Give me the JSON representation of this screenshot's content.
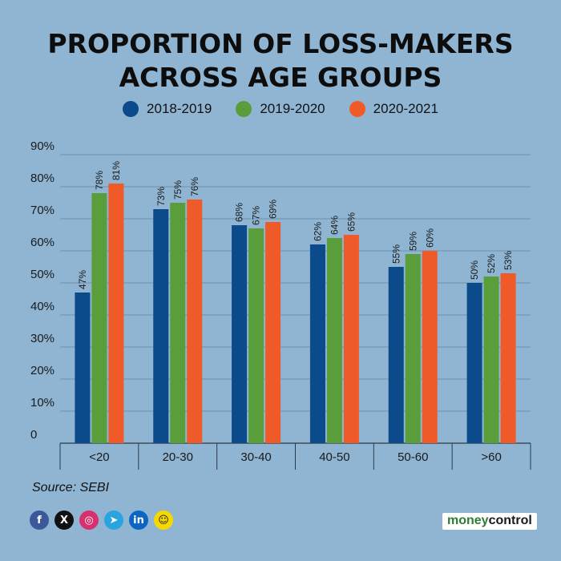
{
  "title_lines": [
    "PROPORTION OF LOSS-MAKERS",
    "ACROSS AGE GROUPS"
  ],
  "legend": [
    {
      "label": "2018-2019",
      "color": "#0b4a8b"
    },
    {
      "label": "2019-2020",
      "color": "#5a9e3b"
    },
    {
      "label": "2020-2021",
      "color": "#ef5a28"
    }
  ],
  "chart_data": {
    "type": "bar",
    "title": "PROPORTION OF LOSS-MAKERS ACROSS AGE GROUPS",
    "categories": [
      "<20",
      "20-30",
      "30-40",
      "40-50",
      "50-60",
      ">60"
    ],
    "series": [
      {
        "name": "2018-2019",
        "color": "#0b4a8b",
        "values": [
          47,
          73,
          68,
          62,
          55,
          50
        ]
      },
      {
        "name": "2019-2020",
        "color": "#5a9e3b",
        "values": [
          78,
          75,
          67,
          64,
          59,
          52
        ]
      },
      {
        "name": "2020-2021",
        "color": "#ef5a28",
        "values": [
          81,
          76,
          69,
          65,
          60,
          53
        ]
      }
    ],
    "ylim": [
      0,
      90
    ],
    "yticks": [
      0,
      10,
      20,
      30,
      40,
      50,
      60,
      70,
      80,
      90
    ],
    "ytick_labels": [
      "0",
      "10%",
      "20%",
      "30%",
      "40%",
      "50%",
      "60%",
      "70%",
      "80%",
      "90%"
    ],
    "value_suffix": "%",
    "xlabel": "",
    "ylabel": "",
    "grid": true,
    "legend_position": "top-center"
  },
  "source": "Source: SEBI",
  "social": [
    {
      "name": "facebook",
      "glyph": "f",
      "color": "#3b5998"
    },
    {
      "name": "x",
      "glyph": "X",
      "color": "#111111"
    },
    {
      "name": "instagram",
      "glyph": "◎",
      "color": "#d6306f"
    },
    {
      "name": "telegram",
      "glyph": "➤",
      "color": "#2aa3df"
    },
    {
      "name": "linkedin",
      "glyph": "in",
      "color": "#0a66c2"
    },
    {
      "name": "snapchat",
      "glyph": "☺",
      "color": "#f5d800"
    }
  ],
  "brand": {
    "part1": "money",
    "part2": "control"
  }
}
